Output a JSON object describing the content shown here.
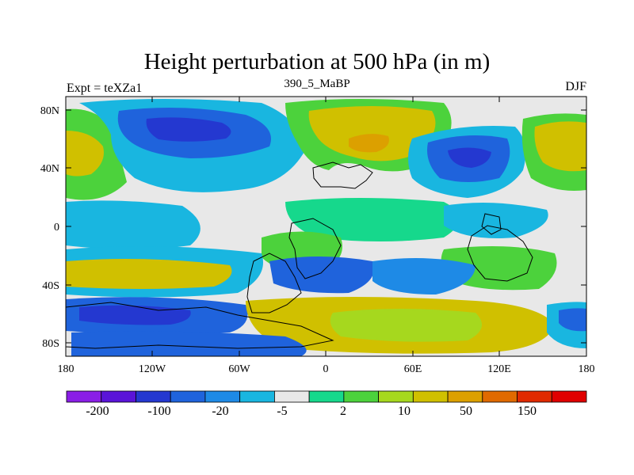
{
  "title": "Height perturbation at 500 hPa (in m)",
  "left_label": "Expt = teXZa1",
  "center_label": "390_5_MaBP",
  "right_label": "DJF",
  "x_ticks": [
    "180",
    "120W",
    "60W",
    "0",
    "60E",
    "120E",
    "180"
  ],
  "y_ticks": [
    "80N",
    "40N",
    "0",
    "40S",
    "80S"
  ],
  "colorbar": {
    "labels": [
      "-200",
      "-100",
      "-20",
      "-5",
      "2",
      "10",
      "50",
      "150"
    ],
    "colors": [
      "#8a1ee6",
      "#5a14d8",
      "#2438d0",
      "#1f63dc",
      "#1e8ae6",
      "#19b6e0",
      "#e8e8e8",
      "#16d88c",
      "#4cd23c",
      "#a6d81e",
      "#d0c000",
      "#dca000",
      "#e06a00",
      "#e02a00",
      "#e00000"
    ]
  },
  "palette": {
    "bg": "#e8e8e8",
    "deep_blue": "#2438d0",
    "blue": "#1f63dc",
    "mid_blue": "#1e8ae6",
    "cyan": "#19b6e0",
    "teal": "#16d88c",
    "green": "#4cd23c",
    "yellowgreen": "#a6d81e",
    "yellow": "#d0c000",
    "orange": "#dca000"
  }
}
